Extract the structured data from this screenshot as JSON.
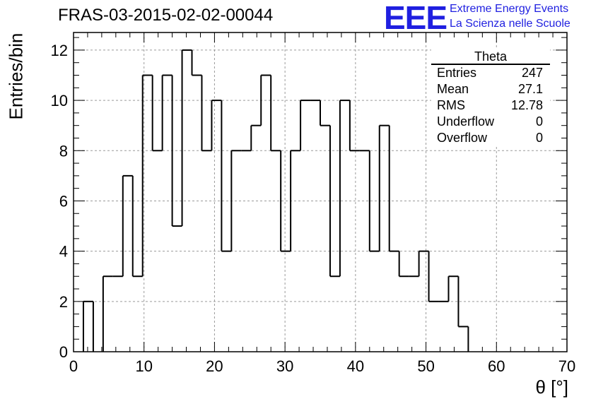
{
  "title": "FRAS-03-2015-02-02-00044",
  "logo": {
    "mark": "EEE",
    "line1": "Extreme Energy Events",
    "line2": "La Scienza nelle Scuole",
    "color": "#1f1fe0"
  },
  "stats": {
    "name": "Theta",
    "rows": [
      {
        "label": "Entries",
        "value": "247"
      },
      {
        "label": "Mean",
        "value": "27.1"
      },
      {
        "label": "RMS",
        "value": "12.78"
      },
      {
        "label": "Underflow",
        "value": "0"
      },
      {
        "label": "Overflow",
        "value": "0"
      }
    ]
  },
  "chart_data": {
    "type": "bar",
    "style": "step-histogram",
    "xlabel": "θ [°]",
    "ylabel": "Entries/bin",
    "xlim": [
      0,
      70
    ],
    "ylim": [
      0,
      12.7
    ],
    "xticks": [
      0,
      10,
      20,
      30,
      40,
      50,
      60,
      70
    ],
    "yticks": [
      0,
      2,
      4,
      6,
      8,
      10,
      12
    ],
    "grid": true,
    "bin_width": 1.4,
    "bin_edges_start": 0,
    "values": [
      0,
      2,
      0,
      3,
      3,
      7,
      3,
      11,
      8,
      11,
      5,
      12,
      11,
      8,
      10,
      4,
      8,
      8,
      9,
      11,
      8,
      4,
      8,
      10,
      10,
      9,
      3,
      10,
      8,
      8,
      4,
      9,
      4,
      3,
      3,
      4,
      2,
      2,
      3,
      1,
      0,
      0,
      0,
      0,
      0,
      0,
      0,
      0,
      0,
      0
    ]
  }
}
